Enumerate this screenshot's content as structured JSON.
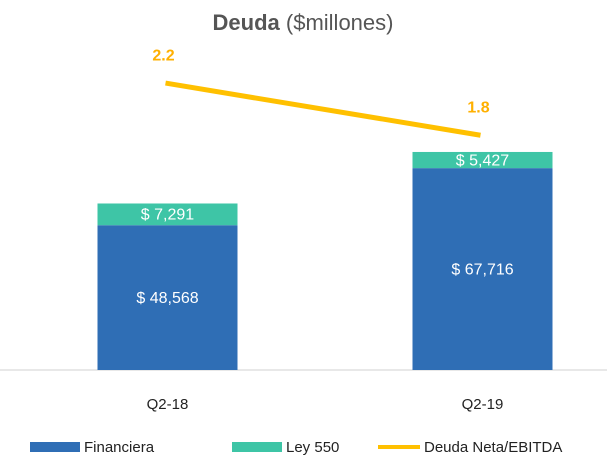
{
  "chart_data": {
    "type": "bar",
    "stacked": true,
    "title": "Deuda",
    "subtitle": "($millones)",
    "categories": [
      "Q2-18",
      "Q2-19"
    ],
    "series": [
      {
        "name": "Financiera",
        "color": "#2f6eb5",
        "values": [
          48568,
          67716
        ],
        "value_labels": [
          "$ 48,568",
          "$ 67,716"
        ]
      },
      {
        "name": "Ley 550",
        "color": "#3ec5a6",
        "values": [
          7291,
          5427
        ],
        "value_labels": [
          "$ 7,291",
          "$ 5,427"
        ]
      },
      {
        "name": "Deuda Neta/EBITDA",
        "color": "#ffc000",
        "type": "line",
        "axis": "y2",
        "values": [
          2.2,
          1.8
        ]
      }
    ],
    "ylim": [
      0,
      105000
    ],
    "y2lim": [
      0,
      2.4
    ],
    "legend": "bottom"
  }
}
